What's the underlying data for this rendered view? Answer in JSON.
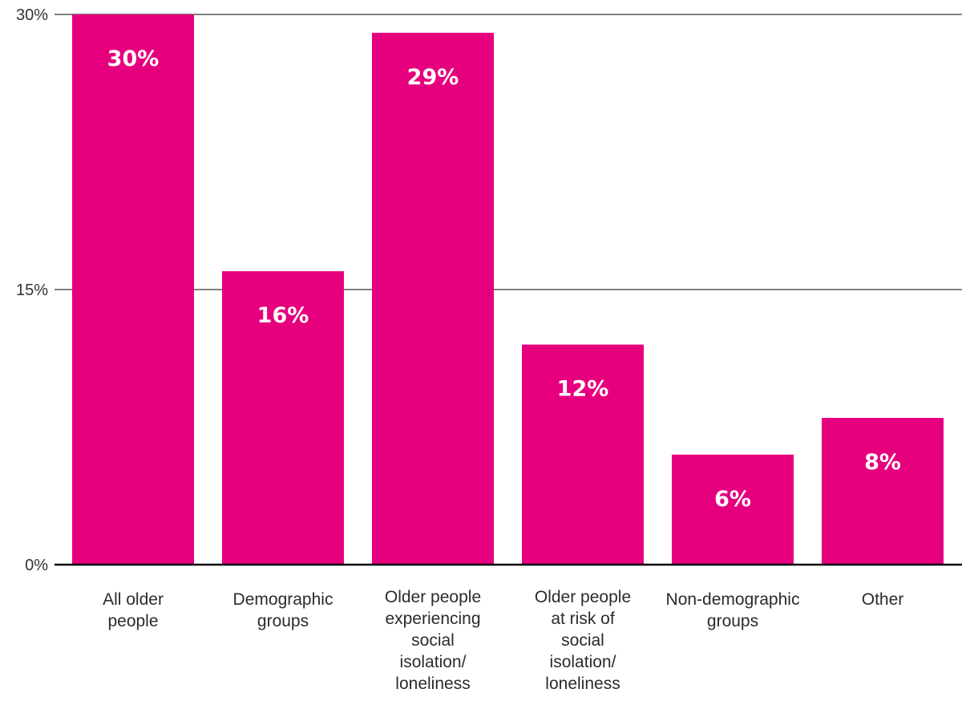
{
  "chart_data": {
    "type": "bar",
    "categories": [
      [
        "All older",
        "people"
      ],
      [
        "Demographic",
        "groups"
      ],
      [
        "Older people",
        "experiencing",
        "social",
        "isolation/",
        "loneliness"
      ],
      [
        "Older people",
        "at risk of",
        "social",
        "isolation/",
        "loneliness"
      ],
      [
        "Non-demographic",
        "groups"
      ],
      [
        "Other"
      ]
    ],
    "values": [
      30,
      16,
      29,
      12,
      6,
      8
    ],
    "value_labels": [
      "30%",
      "16%",
      "29%",
      "12%",
      "6%",
      "8%"
    ],
    "ylim": [
      0,
      30
    ],
    "yticks": [
      0,
      15,
      30
    ],
    "ytick_labels": [
      "0%",
      "15%",
      "30%"
    ],
    "grid": true,
    "bar_color": "#e6007e",
    "grid_color": "#000000"
  }
}
